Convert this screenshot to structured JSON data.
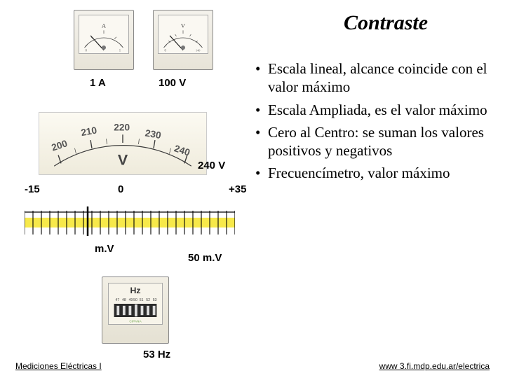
{
  "title": "Contraste",
  "meter_a": {
    "label": "1 A",
    "unit": "A",
    "scale_max": 1,
    "ticks": [
      "0",
      "0.2",
      "0.4",
      "0.6",
      "0.8",
      "1"
    ],
    "case_color": "#e8e4d8",
    "face_color": "#faf8f2"
  },
  "meter_v": {
    "label": "100 V",
    "unit": "V",
    "scale_max": 140,
    "ticks": [
      "0",
      "20",
      "40",
      "60",
      "80",
      "100",
      "120",
      "140"
    ],
    "case_color": "#e8e4d8",
    "face_color": "#faf8f2"
  },
  "arc": {
    "label": "240 V",
    "unit": "V",
    "ticks": [
      "200",
      "210",
      "220",
      "230",
      "240"
    ],
    "tick_color": "#3a3a3a",
    "font_color": "#555"
  },
  "zero_scale": {
    "left": "-15",
    "center": "0",
    "right": "+35",
    "mv_label": "m.V",
    "fifty_label": "50 m.V",
    "tick_count": 26,
    "band_color": "#f7e94a",
    "tick_color": "#000000"
  },
  "hz": {
    "label": "53 Hz",
    "unit": "Hz",
    "ticks": [
      "47",
      "48",
      "49",
      "50",
      "51",
      "52",
      "53"
    ],
    "reed_count": 7
  },
  "bullets": [
    "Escala lineal, alcance coincide con el valor máximo",
    "Escala Ampliada, es el valor máximo",
    "Cero al Centro: se suman los valores positivos y negativos",
    "Frecuencímetro, valor máximo"
  ],
  "footer": {
    "left": "Mediciones Eléctricas I",
    "right": "www 3.fi.mdp.edu.ar/electrica"
  },
  "colors": {
    "text": "#000000",
    "bg": "#ffffff"
  }
}
